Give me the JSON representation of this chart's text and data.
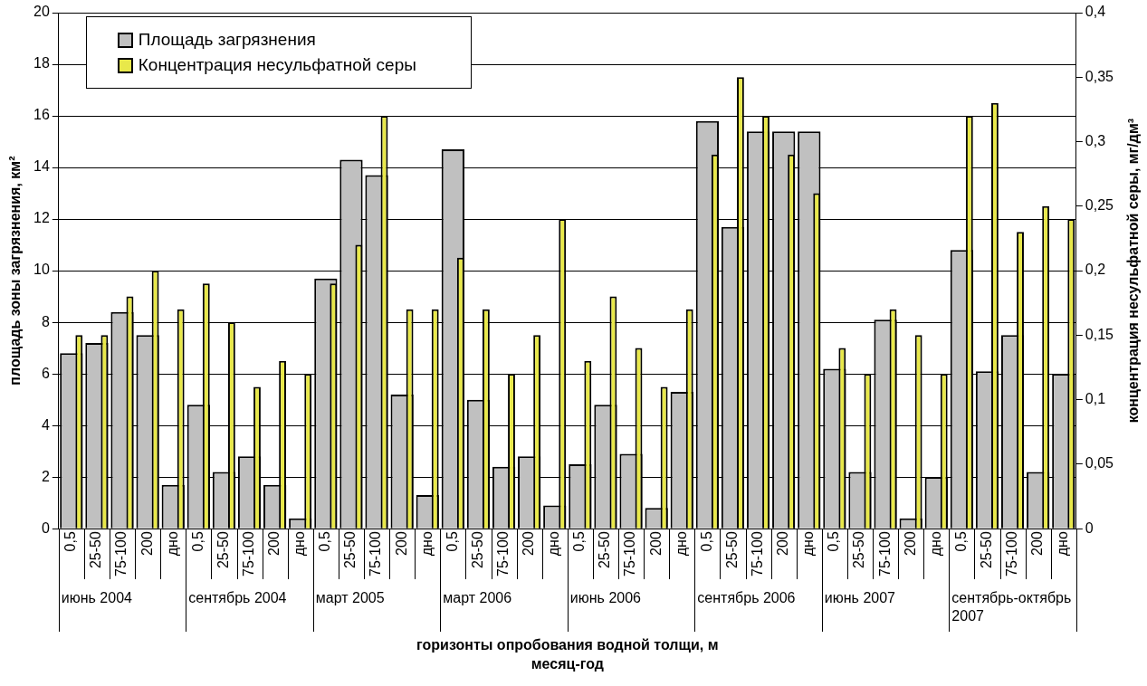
{
  "chart_data": {
    "type": "bar",
    "xlabel": "горизонты опробования водной толщи, м\nмесяц-год",
    "ylabel": "площадь зоны загрязнения, км²",
    "y2label": "концентрация несульфатной серы, мг/дм³",
    "categories": [
      "0,5",
      "25-50",
      "75-100",
      "200",
      "дно",
      "0,5",
      "25-50",
      "75-100",
      "200",
      "дно",
      "0,5",
      "25-50",
      "75-100",
      "200",
      "дно",
      "0,5",
      "25-50",
      "75-100",
      "200",
      "дно",
      "0,5",
      "25-50",
      "75-100",
      "200",
      "дно",
      "0,5",
      "25-50",
      "75-100",
      "200",
      "дно",
      "0,5",
      "25-50",
      "75-100",
      "200",
      "дно",
      "0,5",
      "25-50",
      "75-100",
      "200",
      "дно"
    ],
    "series": [
      {
        "name": "Площадь загрязнения",
        "color": "#c0c0c0",
        "values": [
          6.8,
          7.2,
          8.4,
          7.5,
          1.7,
          4.8,
          2.2,
          2.8,
          1.7,
          0.4,
          9.7,
          14.3,
          13.7,
          5.2,
          1.3,
          14.7,
          5.0,
          2.4,
          2.8,
          0.9,
          2.5,
          4.8,
          2.9,
          0.8,
          5.3,
          15.8,
          11.7,
          15.4,
          15.4,
          15.4,
          6.2,
          2.2,
          8.1,
          0.4,
          2.0,
          10.8,
          6.1,
          7.5,
          2.2,
          6.0
        ]
      },
      {
        "name": "Концентрация несульфатной серы",
        "color": "#e8e84a",
        "axis": "y2",
        "values": [
          0.15,
          0.15,
          0.18,
          0.2,
          0.17,
          0.19,
          0.16,
          0.11,
          0.13,
          0.12,
          0.19,
          0.22,
          0.32,
          0.17,
          0.17,
          0.21,
          0.17,
          0.12,
          0.15,
          0.24,
          0.13,
          0.18,
          0.14,
          0.11,
          0.17,
          0.29,
          0.35,
          0.32,
          0.29,
          0.26,
          0.14,
          0.12,
          0.17,
          0.15,
          0.12,
          0.32,
          0.33,
          0.23,
          0.25,
          0.24
        ]
      }
    ],
    "ylim": [
      0,
      20
    ],
    "yticks": [
      0,
      2,
      4,
      6,
      8,
      10,
      12,
      14,
      16,
      18,
      20
    ],
    "y2lim": [
      0,
      0.4
    ],
    "y2ticks": [
      0,
      {
        "value": 0.05,
        "label": "0,05"
      },
      {
        "value": 0.1,
        "label": "0,1"
      },
      {
        "value": 0.15,
        "label": "0,15"
      },
      {
        "value": 0.2,
        "label": "0,2"
      },
      {
        "value": 0.25,
        "label": "0,25"
      },
      {
        "value": 0.3,
        "label": "0,3"
      },
      {
        "value": 0.35,
        "label": "0,35"
      },
      {
        "value": 0.4,
        "label": "0,4"
      }
    ],
    "annotations": [
      "июнь 2004",
      "сентябрь 2004",
      "март 2005",
      "март 2006",
      "июнь 2006",
      "сентябрь 2006",
      "июнь 2007",
      "сентябрь-октябрь 2007"
    ],
    "grid": "y",
    "legend": "top left"
  }
}
